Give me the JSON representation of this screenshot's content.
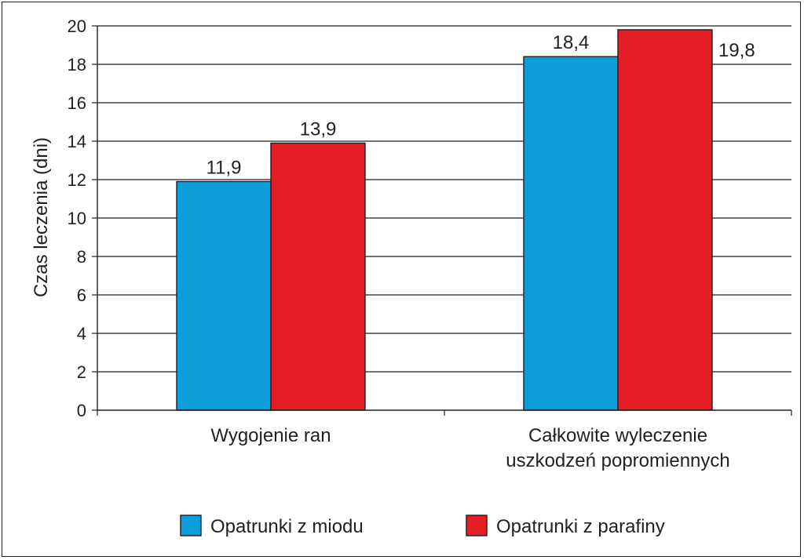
{
  "chart_data": {
    "type": "bar",
    "title": "",
    "xlabel": "",
    "ylabel": "Czas leczenia (dni)",
    "ylim": [
      0,
      20
    ],
    "yticks": [
      0,
      2,
      4,
      6,
      8,
      10,
      12,
      14,
      16,
      18,
      20
    ],
    "grid": true,
    "legend_position": "bottom",
    "categories": [
      [
        "Wygojenie ran"
      ],
      [
        "Całkowite wyleczenie",
        "uszkodzeń popromiennych"
      ]
    ],
    "series": [
      {
        "name": "Opatrunki z miodu",
        "color": "#0d9ddb",
        "values": [
          11.9,
          18.4
        ],
        "labels": [
          "11,9",
          "18,4"
        ]
      },
      {
        "name": "Opatrunki z parafiny",
        "color": "#e31e24",
        "values": [
          13.9,
          19.8
        ],
        "labels": [
          "13,9",
          "19,8"
        ]
      }
    ]
  }
}
